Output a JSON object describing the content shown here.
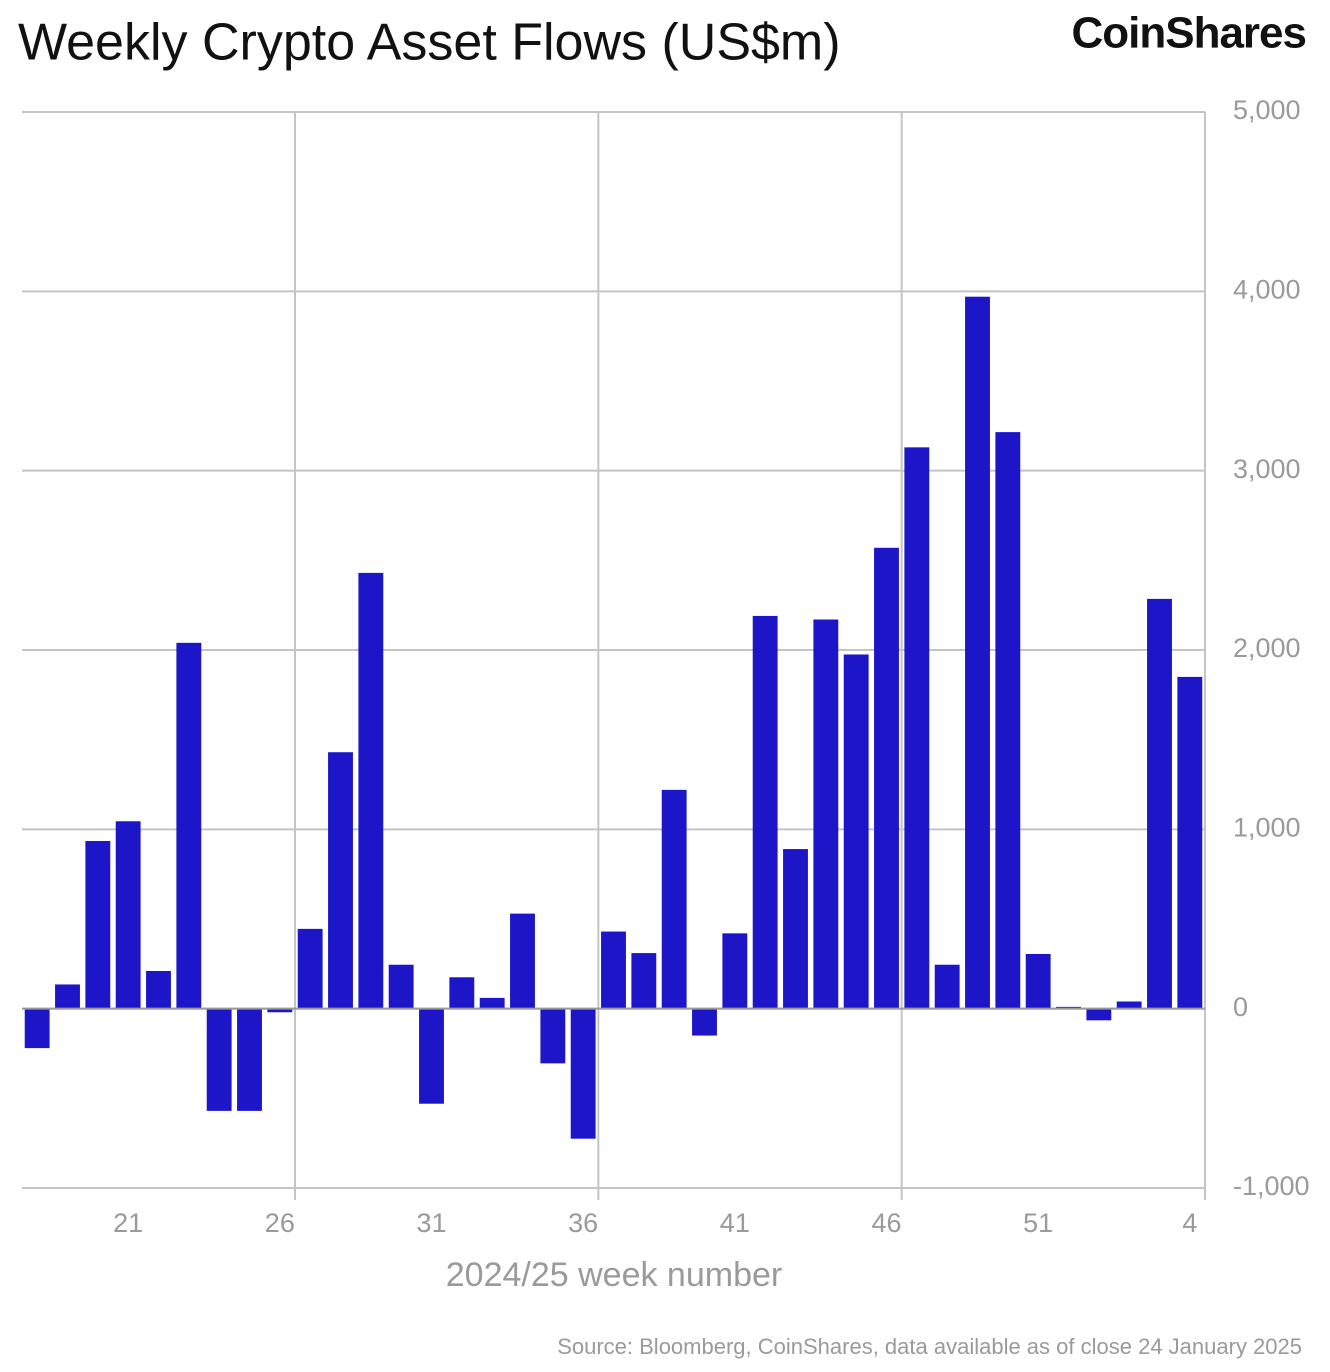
{
  "chart_data": {
    "type": "bar",
    "title": "Weekly Crypto Asset Flows (US$m)",
    "logo": "CoinShares",
    "x_label": "2024/25 week number",
    "source": "Source: Bloomberg, CoinShares, data available as of close 24 January 2025",
    "categories": [
      null,
      null,
      null,
      "21",
      null,
      null,
      null,
      null,
      "26",
      null,
      null,
      null,
      null,
      "31",
      null,
      null,
      null,
      null,
      "36",
      null,
      null,
      null,
      null,
      "41",
      null,
      null,
      null,
      null,
      "46",
      null,
      null,
      null,
      null,
      "51",
      null,
      null,
      null,
      null,
      "4"
    ],
    "values": [
      -220,
      135,
      935,
      1045,
      210,
      2040,
      -570,
      -570,
      -20,
      445,
      1430,
      2430,
      245,
      -530,
      175,
      60,
      530,
      -305,
      -725,
      430,
      310,
      1220,
      -150,
      420,
      2190,
      890,
      2170,
      1975,
      2570,
      3130,
      245,
      3970,
      3215,
      305,
      10,
      -65,
      40,
      2285,
      1850
    ],
    "color": "#1c16c8",
    "ylim": [
      -1000,
      5000
    ],
    "yticks": [
      {
        "value": -1000,
        "label": "-1,000"
      },
      0,
      {
        "value": 1000,
        "label": "1,000"
      },
      {
        "value": 2000,
        "label": "2,000"
      },
      {
        "value": 3000,
        "label": "3,000"
      },
      {
        "value": 4000,
        "label": "4,000"
      },
      {
        "value": 5000,
        "label": "5,000"
      }
    ],
    "grid": true
  }
}
